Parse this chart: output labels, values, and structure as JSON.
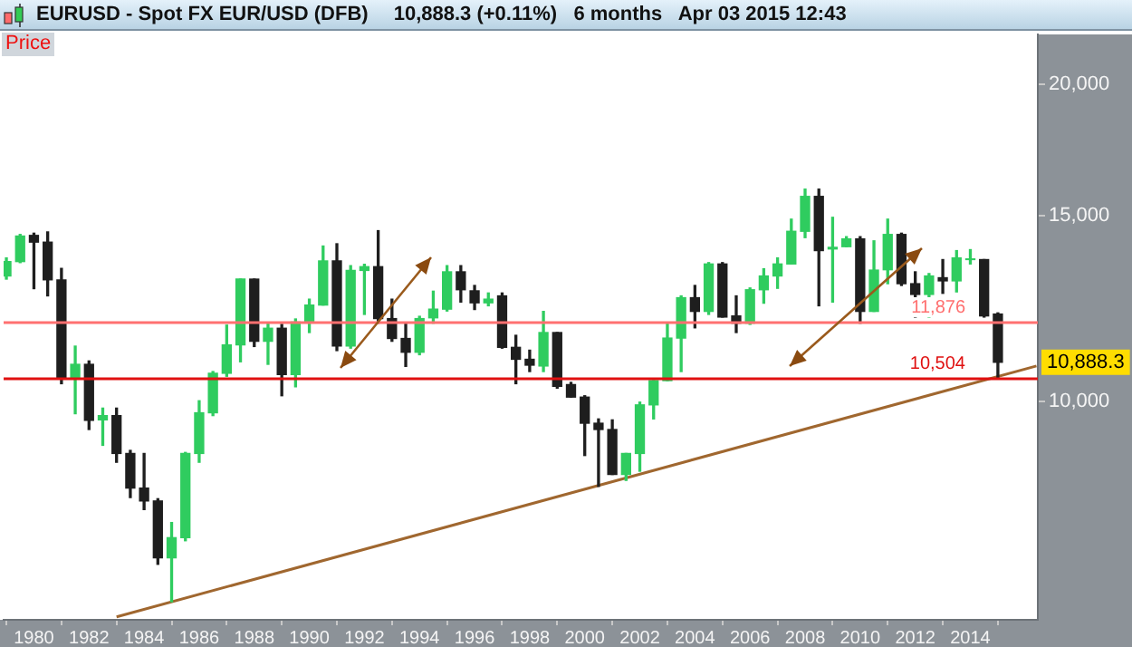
{
  "chart_data": {
    "type": "candlestick",
    "title": "EURUSD - Spot FX EUR/USD (DFB)",
    "subtitle": "10,888.3 (+0.11%)   6 months   Apr 03 2015 12:43",
    "ylabel": "Price",
    "x": [
      1979,
      1979.5,
      1980,
      1980.5,
      1981,
      1981.5,
      1982,
      1982.5,
      1983,
      1983.5,
      1984,
      1984.5,
      1985,
      1985.5,
      1986,
      1986.5,
      1987,
      1987.5,
      1988,
      1988.5,
      1989,
      1989.5,
      1990,
      1990.5,
      1991,
      1991.5,
      1992,
      1992.5,
      1993,
      1993.5,
      1994,
      1994.5,
      1995,
      1995.5,
      1996,
      1996.5,
      1997,
      1997.5,
      1998,
      1998.5,
      1999,
      1999.5,
      2000,
      2000.5,
      2001,
      2001.5,
      2002,
      2002.5,
      2003,
      2003.5,
      2004,
      2004.5,
      2005,
      2005.5,
      2006,
      2006.5,
      2007,
      2007.5,
      2008,
      2008.5,
      2009,
      2009.5,
      2010,
      2010.5,
      2011,
      2011.5,
      2012,
      2012.5,
      2013,
      2013.5,
      2014,
      2014.5,
      2015
    ],
    "ohlc": [
      [
        13150,
        13680,
        13060,
        13570
      ],
      [
        13570,
        14400,
        13540,
        14350
      ],
      [
        14370,
        14440,
        12790,
        14160
      ],
      [
        14160,
        14480,
        12590,
        13040
      ],
      [
        13040,
        13370,
        10390,
        10500
      ],
      [
        10500,
        11280,
        9730,
        10840
      ],
      [
        10840,
        10920,
        9400,
        9590
      ],
      [
        9600,
        9850,
        9080,
        9690
      ],
      [
        9690,
        9850,
        8750,
        8920
      ],
      [
        8920,
        8980,
        8100,
        8270
      ],
      [
        8270,
        8920,
        7890,
        8040
      ],
      [
        8040,
        8080,
        7000,
        7100
      ],
      [
        7100,
        7670,
        6450,
        7420
      ],
      [
        7420,
        8940,
        7370,
        8920
      ],
      [
        8920,
        10010,
        8750,
        9750
      ],
      [
        9750,
        10670,
        9690,
        10630
      ],
      [
        10630,
        11810,
        10560,
        11310
      ],
      [
        11310,
        13060,
        10900,
        13060
      ],
      [
        13060,
        13060,
        11270,
        11400
      ],
      [
        11400,
        11860,
        10840,
        11730
      ],
      [
        11730,
        11830,
        10120,
        10600
      ],
      [
        10600,
        11970,
        10320,
        11890
      ],
      [
        11890,
        12500,
        11620,
        12340
      ],
      [
        12340,
        14040,
        12340,
        13590
      ],
      [
        13590,
        14110,
        11170,
        11280
      ],
      [
        11280,
        13450,
        11230,
        13310
      ],
      [
        13310,
        13490,
        12090,
        13420
      ],
      [
        13420,
        14520,
        11860,
        11980
      ],
      [
        11980,
        12500,
        11400,
        11470
      ],
      [
        11470,
        11860,
        10790,
        11130
      ],
      [
        11130,
        12040,
        11070,
        11980
      ],
      [
        12000,
        12720,
        11860,
        12230
      ],
      [
        12230,
        13450,
        12180,
        13270
      ],
      [
        13270,
        13450,
        12420,
        12760
      ],
      [
        12730,
        12880,
        12220,
        12400
      ],
      [
        12400,
        12670,
        12320,
        12500
      ],
      [
        12590,
        12670,
        11230,
        11250
      ],
      [
        11250,
        11550,
        10390,
        10960
      ],
      [
        10960,
        11180,
        10670,
        10820
      ],
      [
        10800,
        12170,
        10670,
        11620
      ],
      [
        11620,
        11620,
        10290,
        10330
      ],
      [
        10370,
        10420,
        10090,
        10090
      ],
      [
        10090,
        10120,
        8880,
        9530
      ],
      [
        9530,
        9620,
        8300,
        9400
      ],
      [
        9400,
        9600,
        8520,
        8520
      ],
      [
        8520,
        8920,
        8410,
        8920
      ],
      [
        8920,
        9980,
        8580,
        9920
      ],
      [
        9920,
        10460,
        9620,
        10460
      ],
      [
        10460,
        11860,
        10460,
        11480
      ],
      [
        11480,
        12590,
        10670,
        12540
      ],
      [
        12540,
        12880,
        11740,
        12170
      ],
      [
        12170,
        13540,
        12090,
        13500
      ],
      [
        13500,
        13540,
        12020,
        12020
      ],
      [
        12050,
        12590,
        11620,
        11860
      ],
      [
        11860,
        12810,
        11830,
        12760
      ],
      [
        12760,
        13360,
        12390,
        13150
      ],
      [
        13150,
        13680,
        12800,
        13500
      ],
      [
        13500,
        14890,
        13500,
        14500
      ],
      [
        14500,
        15900,
        14300,
        15650
      ],
      [
        15650,
        15900,
        12320,
        13900
      ],
      [
        13950,
        14950,
        12420,
        14000
      ],
      [
        14020,
        14330,
        14020,
        14260
      ],
      [
        14260,
        14330,
        11860,
        12170
      ],
      [
        12170,
        14200,
        12170,
        13320
      ],
      [
        13330,
        14890,
        12930,
        14400
      ],
      [
        14400,
        14440,
        12880,
        12930
      ],
      [
        12930,
        13270,
        12020,
        12630
      ],
      [
        12630,
        13220,
        12020,
        13150
      ],
      [
        13100,
        13630,
        12660,
        13010
      ],
      [
        13010,
        13900,
        12700,
        13680
      ],
      [
        13630,
        13930,
        13500,
        13650
      ],
      [
        13630,
        13630,
        12020,
        12050
      ],
      [
        12100,
        12130,
        10504,
        10888.3
      ]
    ],
    "colors": [
      "#2fcc5f",
      "#2fcc5f",
      "#1e1e1e",
      "#1e1e1e",
      "#1e1e1e",
      "#2fcc5f",
      "#1e1e1e",
      "#2fcc5f",
      "#1e1e1e",
      "#1e1e1e",
      "#1e1e1e",
      "#1e1e1e",
      "#2fcc5f",
      "#2fcc5f",
      "#2fcc5f",
      "#2fcc5f",
      "#2fcc5f",
      "#2fcc5f",
      "#1e1e1e",
      "#2fcc5f",
      "#1e1e1e",
      "#2fcc5f",
      "#2fcc5f",
      "#2fcc5f",
      "#1e1e1e",
      "#2fcc5f",
      "#2fcc5f",
      "#1e1e1e",
      "#1e1e1e",
      "#1e1e1e",
      "#2fcc5f",
      "#2fcc5f",
      "#2fcc5f",
      "#1e1e1e",
      "#1e1e1e",
      "#2fcc5f",
      "#1e1e1e",
      "#1e1e1e",
      "#1e1e1e",
      "#2fcc5f",
      "#1e1e1e",
      "#1e1e1e",
      "#1e1e1e",
      "#1e1e1e",
      "#1e1e1e",
      "#2fcc5f",
      "#2fcc5f",
      "#2fcc5f",
      "#2fcc5f",
      "#2fcc5f",
      "#1e1e1e",
      "#2fcc5f",
      "#1e1e1e",
      "#1e1e1e",
      "#2fcc5f",
      "#2fcc5f",
      "#2fcc5f",
      "#2fcc5f",
      "#2fcc5f",
      "#1e1e1e",
      "#2fcc5f",
      "#2fcc5f",
      "#1e1e1e",
      "#2fcc5f",
      "#2fcc5f",
      "#1e1e1e",
      "#1e1e1e",
      "#2fcc5f",
      "#1e1e1e",
      "#2fcc5f",
      "#2fcc5f",
      "#1e1e1e",
      "#1e1e1e"
    ],
    "series": [
      {
        "type": "line",
        "x": [
          1983.0,
          2016.4
        ],
        "values": [
          6240,
          10800
        ],
        "color": "#a0672f"
      }
    ],
    "xlim": [
      1978.9,
      2016.45
    ],
    "xticks": [
      1980,
      1982,
      1984,
      1986,
      1988,
      1990,
      1992,
      1994,
      1996,
      1998,
      2000,
      2002,
      2004,
      2006,
      2008,
      2010,
      2012,
      2014
    ],
    "ylim": [
      6200,
      22300
    ],
    "yticks": [
      {
        "value": 10000,
        "label": "10,000"
      },
      {
        "value": 15000,
        "label": "15,000"
      },
      {
        "value": 20000,
        "label": "20,000"
      }
    ],
    "log": "y",
    "ref_lines": [
      {
        "axis": "y",
        "value": 11876,
        "label": "11,876",
        "color": "#ff7070"
      },
      {
        "axis": "y",
        "value": 10504,
        "label": "10,504",
        "color": "#e01010"
      }
    ],
    "annotations": [
      {
        "text": "10,888.3",
        "x": 2015,
        "y": 10888.3
      }
    ]
  }
}
